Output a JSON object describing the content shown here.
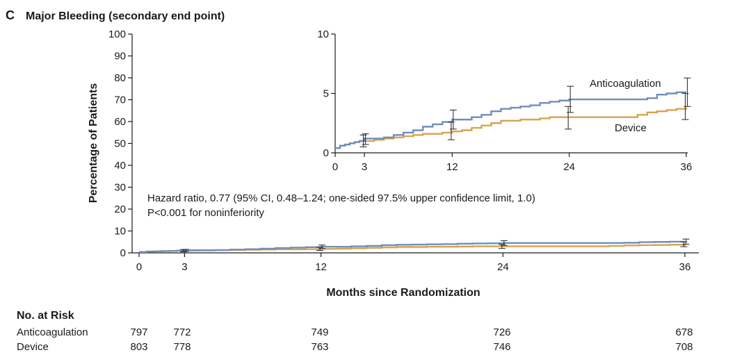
{
  "panel": {
    "letter": "C",
    "title": "Major Bleeding (secondary end point)"
  },
  "chart_data": {
    "type": "line",
    "xlabel": "Months since Randomization",
    "ylabel": "Percentage of Patients",
    "xlim": [
      0,
      36
    ],
    "ylim": [
      0,
      100
    ],
    "xticks": [
      "0",
      "3",
      "12",
      "24",
      "36"
    ],
    "yticks": [
      "0",
      "10",
      "20",
      "30",
      "40",
      "50",
      "60",
      "70",
      "80",
      "90",
      "100"
    ],
    "grid": false,
    "series": [
      {
        "name": "Anticoagulation",
        "color": "#6f8dbd",
        "x": [
          0,
          0.5,
          1,
          1.5,
          2,
          2.5,
          3,
          4,
          5,
          6,
          7,
          8,
          9,
          10,
          11,
          12,
          13,
          14,
          15,
          16,
          17,
          18,
          19,
          20,
          21,
          22,
          23,
          24,
          26,
          28,
          30,
          32,
          33,
          34,
          35,
          36
        ],
        "y": [
          0.4,
          0.6,
          0.7,
          0.8,
          0.9,
          1.0,
          1.2,
          1.2,
          1.3,
          1.5,
          1.7,
          1.9,
          2.2,
          2.4,
          2.6,
          2.8,
          2.8,
          3.0,
          3.2,
          3.5,
          3.7,
          3.8,
          3.9,
          4.0,
          4.2,
          4.3,
          4.4,
          4.5,
          4.5,
          4.5,
          4.5,
          4.6,
          4.9,
          5.0,
          5.1,
          5.1
        ]
      },
      {
        "name": "Device",
        "color": "#d9a24d",
        "x": [
          0,
          0.5,
          1,
          1.5,
          2,
          2.5,
          3,
          4,
          5,
          6,
          7,
          8,
          9,
          10,
          11,
          12,
          13,
          14,
          15,
          16,
          17,
          18,
          19,
          20,
          21,
          22,
          23,
          24,
          26,
          28,
          30,
          31,
          32,
          33,
          34,
          35,
          36
        ],
        "y": [
          0.4,
          0.6,
          0.7,
          0.8,
          0.9,
          1.0,
          1.0,
          1.1,
          1.2,
          1.3,
          1.4,
          1.5,
          1.6,
          1.6,
          1.7,
          1.8,
          1.9,
          2.1,
          2.3,
          2.5,
          2.7,
          2.7,
          2.8,
          2.8,
          2.9,
          3.0,
          3.0,
          3.0,
          3.0,
          3.0,
          3.0,
          3.2,
          3.4,
          3.5,
          3.6,
          3.7,
          3.8
        ]
      }
    ],
    "error_bars": [
      {
        "series": "Anticoagulation",
        "x": 3,
        "low": 0.7,
        "high": 1.6
      },
      {
        "series": "Device",
        "x": 3,
        "low": 0.5,
        "high": 1.5
      },
      {
        "series": "Anticoagulation",
        "x": 12,
        "low": 2.0,
        "high": 3.6
      },
      {
        "series": "Device",
        "x": 12,
        "low": 1.1,
        "high": 2.6
      },
      {
        "series": "Anticoagulation",
        "x": 24,
        "low": 3.4,
        "high": 5.6
      },
      {
        "series": "Device",
        "x": 24,
        "low": 2.0,
        "high": 3.9
      },
      {
        "series": "Anticoagulation",
        "x": 36,
        "low": 3.9,
        "high": 6.3
      },
      {
        "series": "Device",
        "x": 36,
        "low": 2.8,
        "high": 5.0
      }
    ],
    "inset": {
      "xlim": [
        0,
        36
      ],
      "ylim": [
        0,
        10
      ],
      "xticks": [
        "0",
        "3",
        "12",
        "24",
        "36"
      ],
      "yticks": [
        "0",
        "5",
        "10"
      ]
    },
    "annotations": {
      "hazard_line1": "Hazard ratio, 0.77 (95% CI, 0.48–1.24; one-sided 97.5% upper confidence limit, 1.0)",
      "hazard_line2": "P<0.001 for noninferiority"
    }
  },
  "risk_table": {
    "title": "No. at Risk",
    "rows": [
      {
        "label": "Anticoagulation",
        "values": [
          "797",
          "772",
          "749",
          "726",
          "678"
        ]
      },
      {
        "label": "Device",
        "values": [
          "803",
          "778",
          "763",
          "746",
          "708"
        ]
      }
    ]
  }
}
